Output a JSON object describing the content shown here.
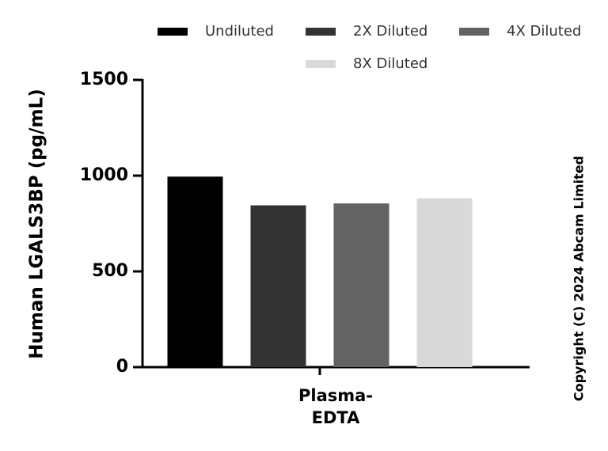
{
  "chart_data": {
    "type": "bar",
    "y_label": "Human LGALS3BP (pg/mL)",
    "categories": [
      "Plasma-EDTA"
    ],
    "series": [
      {
        "name": "Undiluted",
        "color": "#000000",
        "values": [
          995
        ]
      },
      {
        "name": "2X Diluted",
        "color": "#333333",
        "values": [
          845
        ]
      },
      {
        "name": "4X Diluted",
        "color": "#636363",
        "values": [
          855
        ]
      },
      {
        "name": "8X Diluted",
        "color": "#d9d9d9",
        "values": [
          882
        ]
      }
    ],
    "ylim": [
      0,
      1500
    ],
    "yticks": [
      0,
      500,
      1000,
      1500
    ],
    "grid": false,
    "copyright": "Copyright (C) 2024 Abcam Limited"
  }
}
